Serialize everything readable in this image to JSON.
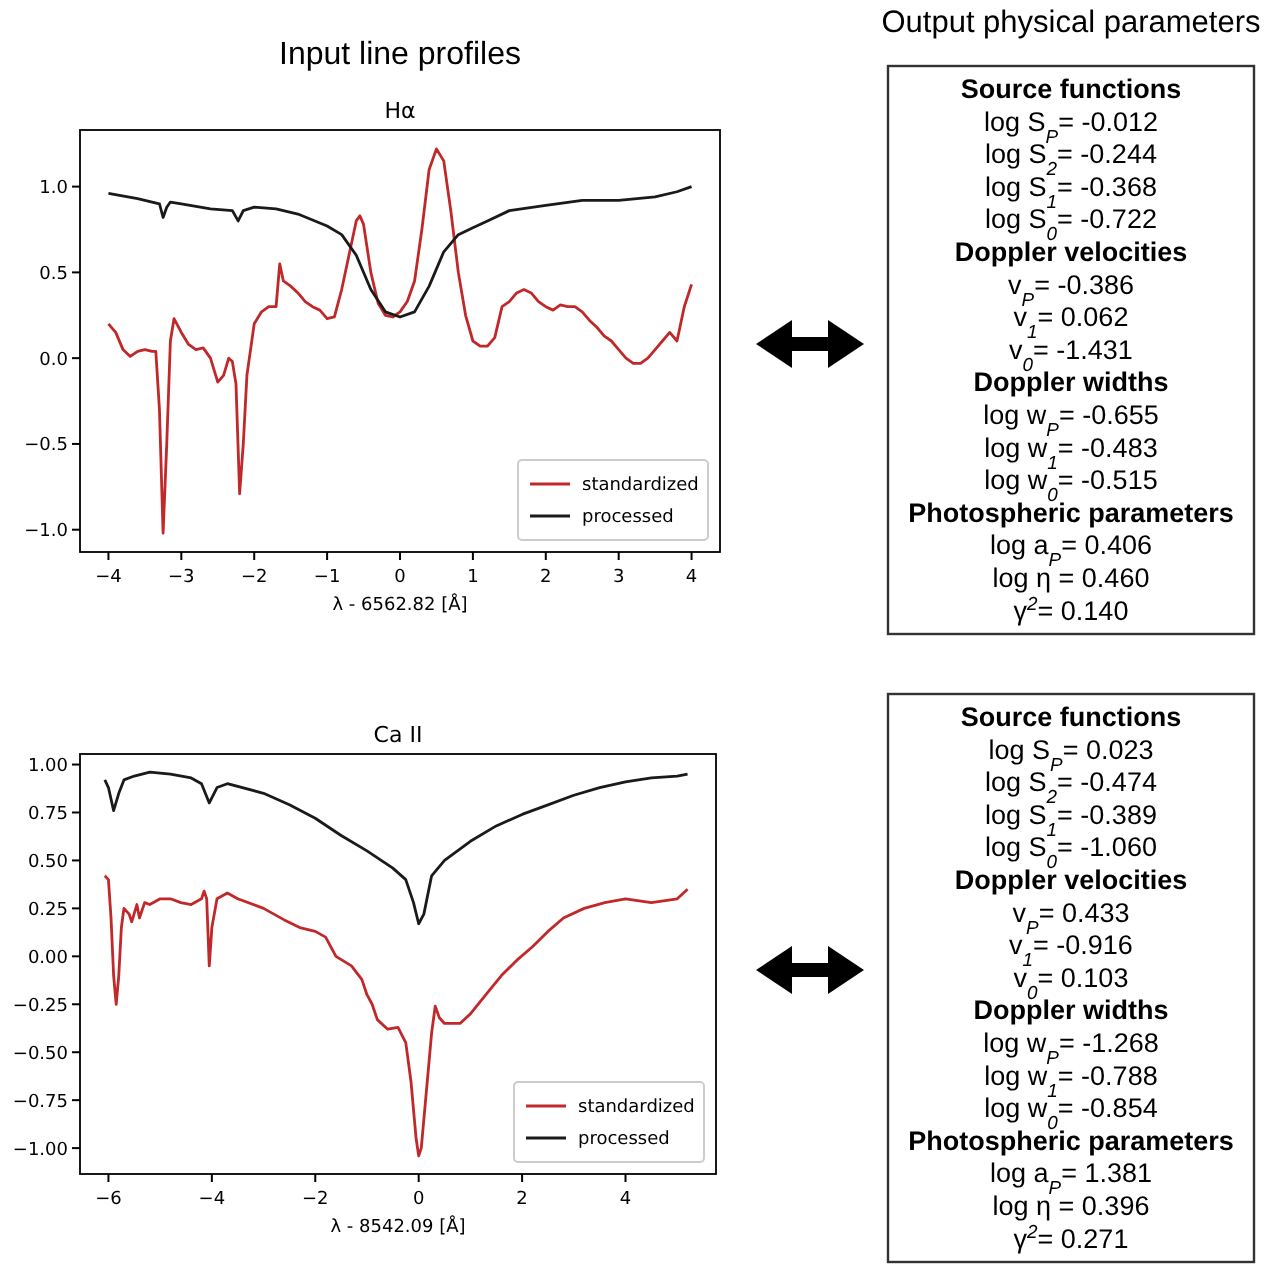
{
  "chart_data": [
    {
      "type": "line",
      "title": "Hα",
      "annotations": [
        "Input line profiles"
      ],
      "xlabel": "λ - 6562.82 [Å]",
      "xlim": [
        -4.39,
        4.39
      ],
      "ylim": [
        -1.13,
        1.33
      ],
      "xticks": [
        {
          "value": -4,
          "label": "−4"
        },
        {
          "value": -3,
          "label": "−3"
        },
        {
          "value": -2,
          "label": "−2"
        },
        {
          "value": -1,
          "label": "−1"
        },
        0,
        1,
        2,
        3,
        4
      ],
      "yticks": [
        {
          "value": -1,
          "label": "−1.0"
        },
        {
          "value": -0.5,
          "label": "−0.5"
        },
        {
          "value": 0,
          "label": "0.0"
        },
        {
          "value": 0.5,
          "label": "0.5"
        },
        {
          "value": 1,
          "label": "1.0"
        }
      ],
      "legend": "bottom right",
      "grid": false,
      "marker": "none",
      "line_style": "solid",
      "series": [
        {
          "name": "standardized",
          "color": "#c0282a",
          "x": [
            -4,
            -3.9,
            -3.8,
            -3.7,
            -3.6,
            -3.5,
            -3.4,
            -3.35,
            -3.3,
            -3.25,
            -3.2,
            -3.15,
            -3.1,
            -3,
            -2.9,
            -2.8,
            -2.7,
            -2.6,
            -2.5,
            -2.42,
            -2.35,
            -2.3,
            -2.25,
            -2.2,
            -2.15,
            -2.1,
            -2,
            -1.9,
            -1.8,
            -1.7,
            -1.65,
            -1.6,
            -1.5,
            -1.4,
            -1.3,
            -1.2,
            -1.1,
            -1,
            -0.9,
            -0.8,
            -0.7,
            -0.6,
            -0.55,
            -0.5,
            -0.4,
            -0.3,
            -0.2,
            -0.1,
            0,
            0.1,
            0.2,
            0.3,
            0.4,
            0.5,
            0.6,
            0.7,
            0.8,
            0.9,
            1,
            1.1,
            1.2,
            1.3,
            1.4,
            1.5,
            1.6,
            1.7,
            1.8,
            1.9,
            2,
            2.1,
            2.2,
            2.3,
            2.4,
            2.5,
            2.6,
            2.7,
            2.8,
            2.9,
            3,
            3.1,
            3.2,
            3.3,
            3.4,
            3.5,
            3.6,
            3.7,
            3.8,
            3.9,
            4
          ],
          "values": [
            0.2,
            0.15,
            0.05,
            0.01,
            0.04,
            0.05,
            0.04,
            0.04,
            -0.3,
            -1.02,
            -0.5,
            0.1,
            0.23,
            0.15,
            0.08,
            0.05,
            0.06,
            0,
            -0.14,
            -0.1,
            0,
            -0.02,
            -0.15,
            -0.79,
            -0.5,
            -0.1,
            0.2,
            0.27,
            0.3,
            0.3,
            0.55,
            0.45,
            0.42,
            0.38,
            0.33,
            0.3,
            0.28,
            0.23,
            0.24,
            0.4,
            0.6,
            0.8,
            0.83,
            0.78,
            0.5,
            0.32,
            0.25,
            0.24,
            0.27,
            0.33,
            0.45,
            0.75,
            1.1,
            1.22,
            1.15,
            0.85,
            0.5,
            0.25,
            0.1,
            0.07,
            0.07,
            0.12,
            0.3,
            0.33,
            0.38,
            0.4,
            0.38,
            0.33,
            0.3,
            0.28,
            0.31,
            0.3,
            0.3,
            0.27,
            0.22,
            0.18,
            0.13,
            0.1,
            0.05,
            0,
            -0.03,
            -0.03,
            0,
            0.05,
            0.1,
            0.15,
            0.1,
            0.3,
            0.43
          ]
        },
        {
          "name": "processed",
          "color": "#1a1a1a",
          "x": [
            -4,
            -3.6,
            -3.3,
            -3.25,
            -3.2,
            -3.15,
            -3,
            -2.6,
            -2.3,
            -2.22,
            -2.15,
            -2,
            -1.7,
            -1.4,
            -1,
            -0.8,
            -0.6,
            -0.4,
            -0.2,
            0,
            0.2,
            0.4,
            0.6,
            0.8,
            1,
            1.2,
            1.5,
            2,
            2.5,
            3,
            3.5,
            3.8,
            4
          ],
          "values": [
            0.96,
            0.93,
            0.9,
            0.82,
            0.88,
            0.91,
            0.9,
            0.87,
            0.86,
            0.8,
            0.86,
            0.88,
            0.87,
            0.84,
            0.77,
            0.72,
            0.6,
            0.4,
            0.27,
            0.24,
            0.27,
            0.42,
            0.62,
            0.72,
            0.76,
            0.8,
            0.86,
            0.89,
            0.92,
            0.92,
            0.94,
            0.97,
            1
          ]
        }
      ]
    },
    {
      "type": "other",
      "title": "Output physical parameters",
      "subtitle": "Source functions",
      "annotations": [
        "log S$_{P}$= -0.012",
        "log S$_{2}$= -0.244",
        "log S$_{1}$= -0.368",
        "log S$_{0}$= -0.722"
      ]
    },
    {
      "type": "other",
      "subtitle": "Doppler velocities",
      "annotations": [
        "v$_{P}$= -0.386",
        "v$_{1}$= 0.062",
        "v$_{0}$= -1.431"
      ]
    },
    {
      "type": "other",
      "subtitle": "Doppler widths",
      "annotations": [
        "log w$_{P}$= -0.655",
        "log w$_{1}$= -0.483",
        "log w$_{0}$= -0.515"
      ]
    },
    {
      "type": "other",
      "subtitle": "Photospheric parameters",
      "annotations": [
        "log a$_{P}$= 0.406",
        "log η = 0.460",
        "γ$^{2}$= 0.140"
      ]
    },
    {
      "type": "line",
      "title": "Ca II",
      "xlabel": "λ - 8542.09 [Å]",
      "xlim": [
        -6.55,
        5.75
      ],
      "ylim": [
        -1.135,
        1.055
      ],
      "xticks": [
        {
          "value": -6,
          "label": "−6"
        },
        {
          "value": -4,
          "label": "−4"
        },
        {
          "value": -2,
          "label": "−2"
        },
        0,
        2,
        4
      ],
      "yticks": [
        {
          "value": -1,
          "label": "−1.00"
        },
        {
          "value": -0.75,
          "label": "−0.75"
        },
        {
          "value": -0.5,
          "label": "−0.50"
        },
        {
          "value": -0.25,
          "label": "−0.25"
        },
        {
          "value": 0,
          "label": "0.00"
        },
        {
          "value": 0.25,
          "label": "0.25"
        },
        {
          "value": 0.5,
          "label": "0.50"
        },
        {
          "value": 0.75,
          "label": "0.75"
        },
        {
          "value": 1,
          "label": "1.00"
        }
      ],
      "legend": "bottom right",
      "grid": false,
      "marker": "none",
      "line_style": "solid",
      "series": [
        {
          "name": "standardized",
          "color": "#c0282a",
          "x": [
            -6.07,
            -6,
            -5.95,
            -5.9,
            -5.85,
            -5.8,
            -5.75,
            -5.7,
            -5.6,
            -5.55,
            -5.45,
            -5.4,
            -5.3,
            -5.2,
            -5,
            -4.8,
            -4.6,
            -4.4,
            -4.2,
            -4.15,
            -4.1,
            -4.05,
            -4,
            -3.9,
            -3.7,
            -3.5,
            -3,
            -2.6,
            -2.3,
            -2,
            -1.8,
            -1.6,
            -1.3,
            -1.1,
            -1,
            -0.9,
            -0.8,
            -0.6,
            -0.4,
            -0.25,
            -0.15,
            -0.05,
            0,
            0.05,
            0.15,
            0.25,
            0.32,
            0.4,
            0.5,
            0.8,
            1,
            1.3,
            1.6,
            1.9,
            2.2,
            2.5,
            2.8,
            3.2,
            3.6,
            4,
            4.5,
            5,
            5.2
          ],
          "values": [
            0.42,
            0.4,
            0.2,
            -0.1,
            -0.25,
            -0.1,
            0.15,
            0.25,
            0.22,
            0.18,
            0.27,
            0.2,
            0.28,
            0.27,
            0.3,
            0.3,
            0.28,
            0.27,
            0.3,
            0.34,
            0.3,
            -0.05,
            0.15,
            0.3,
            0.33,
            0.3,
            0.25,
            0.19,
            0.15,
            0.13,
            0.1,
            0,
            -0.05,
            -0.12,
            -0.2,
            -0.25,
            -0.33,
            -0.38,
            -0.37,
            -0.45,
            -0.65,
            -0.95,
            -1.04,
            -1,
            -0.7,
            -0.4,
            -0.26,
            -0.32,
            -0.35,
            -0.35,
            -0.3,
            -0.2,
            -0.1,
            -0.02,
            0.05,
            0.13,
            0.2,
            0.25,
            0.28,
            0.3,
            0.28,
            0.3,
            0.35
          ]
        },
        {
          "name": "processed",
          "color": "#1a1a1a",
          "x": [
            -6.07,
            -6,
            -5.9,
            -5.8,
            -5.7,
            -5.5,
            -5.2,
            -4.8,
            -4.4,
            -4.2,
            -4.05,
            -3.9,
            -3.7,
            -3,
            -2.5,
            -2,
            -1.5,
            -1,
            -0.5,
            -0.25,
            -0.1,
            0,
            0.1,
            0.25,
            0.5,
            1,
            1.5,
            2,
            2.5,
            3,
            3.5,
            4,
            4.5,
            5,
            5.2
          ],
          "values": [
            0.92,
            0.88,
            0.76,
            0.85,
            0.92,
            0.94,
            0.96,
            0.95,
            0.93,
            0.9,
            0.8,
            0.88,
            0.9,
            0.85,
            0.79,
            0.72,
            0.63,
            0.55,
            0.46,
            0.4,
            0.28,
            0.17,
            0.22,
            0.42,
            0.5,
            0.6,
            0.68,
            0.74,
            0.79,
            0.84,
            0.88,
            0.91,
            0.93,
            0.94,
            0.95
          ]
        }
      ]
    },
    {
      "type": "other",
      "subtitle": "Source functions",
      "annotations": [
        "log S$_{P}$= 0.023",
        "log S$_{2}$= -0.474",
        "log S$_{1}$= -0.389",
        "log S$_{0}$= -1.060"
      ]
    },
    {
      "type": "other",
      "subtitle": "Doppler velocities",
      "annotations": [
        "v$_{P}$= 0.433",
        "v$_{1}$= -0.916",
        "v$_{0}$= 0.103"
      ]
    },
    {
      "type": "other",
      "subtitle": "Doppler widths",
      "annotations": [
        "log w$_{P}$= -1.268",
        "log w$_{1}$= -0.788",
        "log w$_{0}$= -0.854"
      ]
    },
    {
      "type": "other",
      "subtitle": "Photospheric parameters",
      "annotations": [
        "log a$_{P}$= 1.381",
        "log η = 0.396",
        "γ$^{2}$= 0.271"
      ]
    }
  ]
}
